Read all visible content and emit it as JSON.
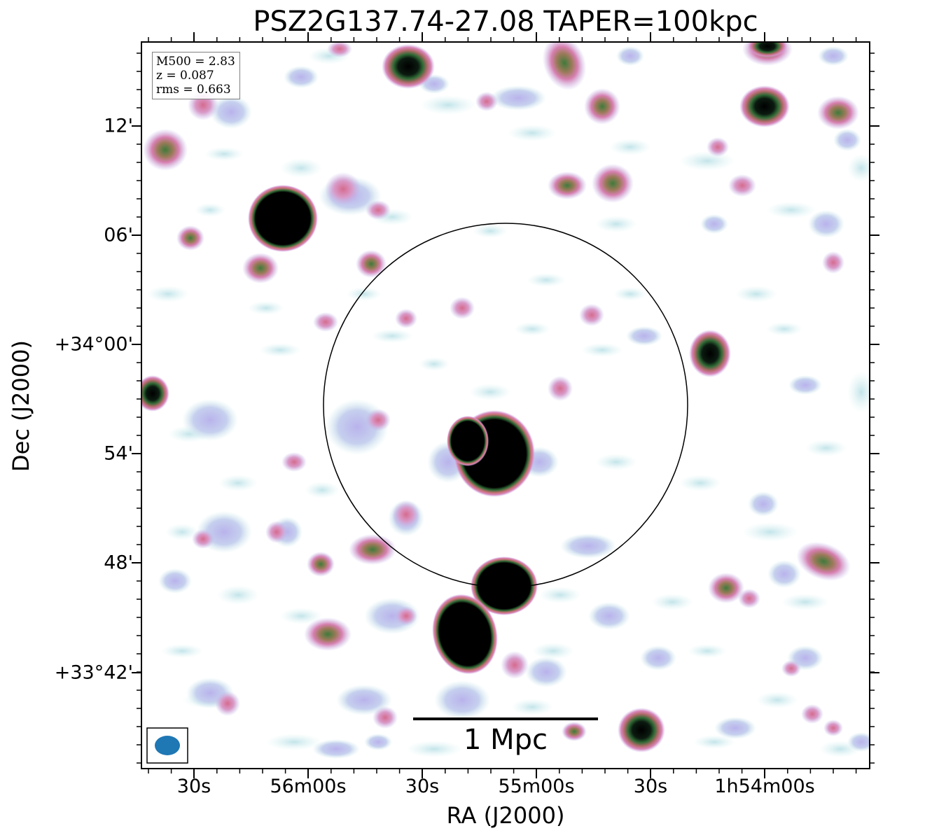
{
  "title": "PSZ2G137.74-27.08 TAPER=100kpc",
  "axes": {
    "xlabel": "RA (J2000)",
    "ylabel": "Dec (J2000)",
    "xticks": [
      "30s",
      "56m00s",
      "30s",
      "55m00s",
      "30s",
      "1h54m00s"
    ],
    "yticks": [
      "12'",
      "06'",
      "+34°00'",
      "54'",
      "48'",
      "+33°42'"
    ]
  },
  "info": {
    "m500": "M500 = 2.83",
    "z": "z = 0.087",
    "rms": "rms = 0.663"
  },
  "scalebar": {
    "label": "1 Mpc"
  },
  "colors": {
    "frame": "#000000",
    "beam": "#1f77b4",
    "contour_faint": "#c6e8ea",
    "contour_low": "#b8b4ec",
    "contour_mid": "#d77fb0",
    "contour_high": "#3f7a3a",
    "core": "#000000"
  }
}
